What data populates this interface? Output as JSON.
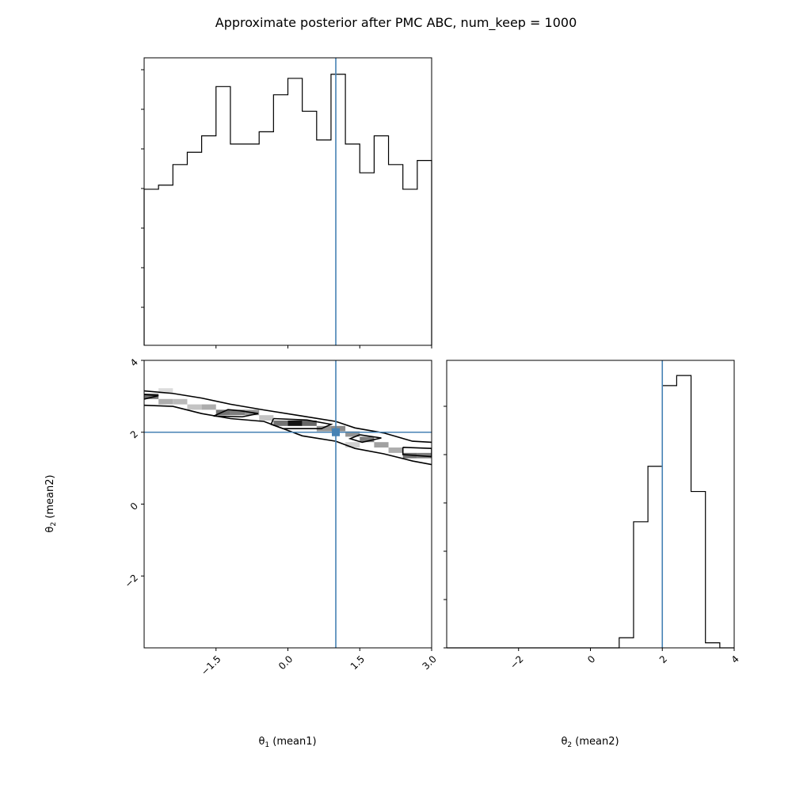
{
  "chart_data": {
    "type": "corner",
    "title": "Approximate posterior after PMC ABC, num_keep = 1000",
    "truth_color": "#4682b4",
    "line_color": "#000000",
    "parameters": [
      {
        "label": "θ₁ (mean1)",
        "label_symbol": "θ",
        "label_sub": "1",
        "label_text": " (mean1)",
        "range": [
          -3,
          3
        ],
        "truth": 1
      },
      {
        "label": "θ₂ (mean2)",
        "label_symbol": "θ",
        "label_sub": "2",
        "label_text": " (mean2)",
        "range": [
          -4,
          4
        ],
        "truth": 2
      }
    ],
    "histogram_theta1": {
      "bin_edges": [
        -3,
        -2.7,
        -2.4,
        -2.1,
        -1.8,
        -1.5,
        -1.2,
        -0.9,
        -0.6,
        -0.3,
        0,
        0.3,
        0.6,
        0.9,
        1.2,
        1.5,
        1.8,
        2.1,
        2.4,
        2.7,
        3
      ],
      "counts": [
        38,
        39,
        44,
        47,
        51,
        63,
        49,
        49,
        52,
        61,
        65,
        57,
        50,
        66,
        49,
        42,
        51,
        44,
        38,
        45
      ],
      "ymax": 70
    },
    "histogram_theta2": {
      "bin_edges": [
        -4,
        -3.6,
        -3.2,
        -2.8,
        -2.4,
        -2,
        -1.6,
        -1.2,
        -0.8,
        -0.4,
        0,
        0.4,
        0.8,
        1.2,
        1.6,
        2,
        2.4,
        2.8,
        3.2,
        3.6,
        4
      ],
      "counts": [
        0,
        0,
        0,
        0,
        0,
        0,
        0,
        0,
        0,
        0,
        0,
        0,
        2,
        25,
        36,
        52,
        54,
        31,
        1,
        0
      ],
      "ymax": 57
    },
    "joint": {
      "cells": [
        {
          "x": -2.85,
          "y": 3.0,
          "w": 0.6
        },
        {
          "x": -2.55,
          "y": 2.85,
          "w": 0.35
        },
        {
          "x": -2.25,
          "y": 2.85,
          "w": 0.3
        },
        {
          "x": -1.95,
          "y": 2.7,
          "w": 0.25
        },
        {
          "x": -1.65,
          "y": 2.7,
          "w": 0.35
        },
        {
          "x": -1.35,
          "y": 2.55,
          "w": 0.6
        },
        {
          "x": -1.05,
          "y": 2.55,
          "w": 0.55
        },
        {
          "x": -0.75,
          "y": 2.55,
          "w": 0.45
        },
        {
          "x": -0.45,
          "y": 2.4,
          "w": 0.25
        },
        {
          "x": -0.15,
          "y": 2.25,
          "w": 0.6
        },
        {
          "x": 0.15,
          "y": 2.25,
          "w": 1.0
        },
        {
          "x": 0.45,
          "y": 2.25,
          "w": 0.65
        },
        {
          "x": 0.75,
          "y": 2.1,
          "w": 0.45
        },
        {
          "x": 1.05,
          "y": 2.1,
          "w": 0.5
        },
        {
          "x": 1.35,
          "y": 1.95,
          "w": 0.45
        },
        {
          "x": 1.65,
          "y": 1.8,
          "w": 0.55
        },
        {
          "x": 1.95,
          "y": 1.65,
          "w": 0.4
        },
        {
          "x": 2.25,
          "y": 1.5,
          "w": 0.35
        },
        {
          "x": 2.55,
          "y": 1.35,
          "w": 0.6
        },
        {
          "x": 2.85,
          "y": 1.35,
          "w": 0.55
        },
        {
          "x": 1.35,
          "y": 1.65,
          "w": 0.2
        },
        {
          "x": -2.55,
          "y": 3.15,
          "w": 0.15
        }
      ],
      "contours": [
        [
          [
            -3,
            3.15
          ],
          [
            -2.4,
            3.08
          ],
          [
            -1.8,
            2.95
          ],
          [
            -1.2,
            2.78
          ],
          [
            -0.5,
            2.62
          ],
          [
            0.3,
            2.45
          ],
          [
            1.0,
            2.3
          ],
          [
            1.4,
            2.12
          ],
          [
            2.0,
            1.98
          ],
          [
            2.6,
            1.75
          ],
          [
            3,
            1.72
          ]
        ],
        [
          [
            -3,
            2.75
          ],
          [
            -2.4,
            2.72
          ],
          [
            -1.8,
            2.52
          ],
          [
            -1.2,
            2.38
          ],
          [
            -0.5,
            2.3
          ],
          [
            0.3,
            1.9
          ],
          [
            1.0,
            1.75
          ],
          [
            1.4,
            1.55
          ],
          [
            2.0,
            1.4
          ],
          [
            2.6,
            1.2
          ],
          [
            3,
            1.1
          ]
        ],
        [
          [
            -1.0,
            2.6
          ],
          [
            -0.62,
            2.52
          ],
          [
            -0.95,
            2.43
          ],
          [
            -1.55,
            2.45
          ],
          [
            -1.25,
            2.63
          ],
          [
            -1.0,
            2.6
          ]
        ],
        [
          [
            -0.3,
            2.38
          ],
          [
            0.4,
            2.34
          ],
          [
            0.9,
            2.22
          ],
          [
            0.7,
            2.1
          ],
          [
            -0.1,
            2.1
          ],
          [
            -0.35,
            2.22
          ],
          [
            -0.3,
            2.38
          ]
        ],
        [
          [
            1.5,
            1.93
          ],
          [
            1.95,
            1.84
          ],
          [
            1.55,
            1.72
          ],
          [
            1.3,
            1.82
          ],
          [
            1.5,
            1.93
          ]
        ],
        [
          [
            2.4,
            1.58
          ],
          [
            3,
            1.55
          ],
          [
            3,
            1.32
          ],
          [
            2.4,
            1.38
          ],
          [
            2.4,
            1.58
          ]
        ],
        [
          [
            -3,
            3.05
          ],
          [
            -2.7,
            3.02
          ],
          [
            -3,
            2.92
          ]
        ]
      ]
    },
    "ticks_theta1": [
      "−1.5",
      "0.0",
      "1.5",
      "3.0"
    ],
    "ticks_theta1_values": [
      -1.5,
      0,
      1.5,
      3
    ],
    "ticks_theta2": [
      "−2",
      "0",
      "2",
      "4"
    ],
    "ticks_theta2_values": [
      -2,
      0,
      2,
      4
    ]
  }
}
